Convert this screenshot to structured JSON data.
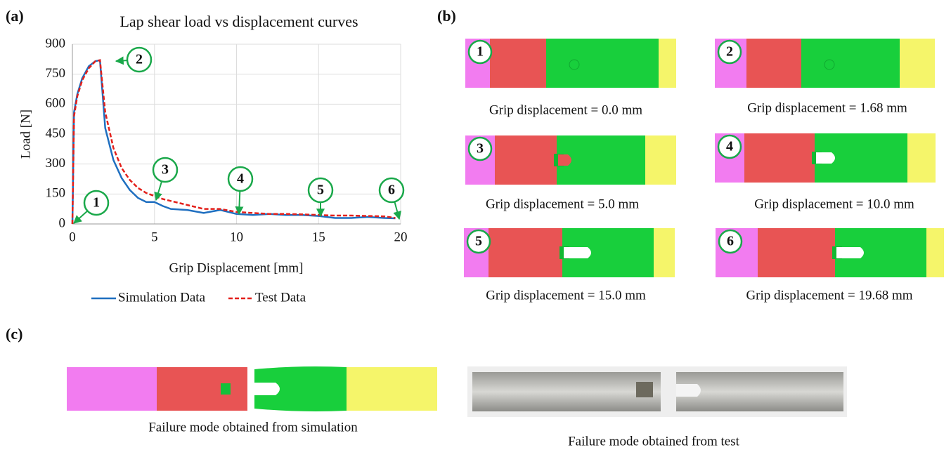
{
  "chart_data": {
    "type": "line",
    "panel_label": "(a)",
    "title": "Lap shear load vs displacement curves",
    "x_label": "Grip Displacement [mm]",
    "y_label": "Load [N]",
    "x": [
      0,
      0.1,
      0.3,
      0.6,
      1.0,
      1.4,
      1.68,
      2.0,
      2.5,
      3,
      3.5,
      4,
      4.5,
      5,
      5.5,
      6,
      7,
      8,
      9,
      10,
      11,
      12,
      13,
      14,
      15,
      16,
      17,
      18,
      19,
      19.68
    ],
    "series": [
      {
        "name": "Simulation Data",
        "color": "#1f6fc0",
        "dash": false,
        "values": [
          0,
          560,
          650,
          730,
          790,
          815,
          820,
          480,
          320,
          230,
          170,
          130,
          110,
          110,
          90,
          75,
          70,
          55,
          70,
          50,
          45,
          50,
          45,
          45,
          40,
          30,
          30,
          35,
          30,
          28
        ]
      },
      {
        "name": "Test Data",
        "color": "#e3201b",
        "dash": true,
        "values": [
          0,
          540,
          640,
          720,
          780,
          815,
          820,
          560,
          380,
          280,
          220,
          180,
          155,
          140,
          125,
          115,
          95,
          75,
          75,
          60,
          55,
          50,
          50,
          48,
          45,
          42,
          42,
          40,
          38,
          30
        ]
      }
    ],
    "xlim": [
      0,
      20
    ],
    "ylim": [
      0,
      900
    ],
    "xticks": [
      0,
      5,
      10,
      15,
      20
    ],
    "yticks": [
      0,
      150,
      300,
      450,
      600,
      750,
      900
    ],
    "grid": true,
    "legend": "bottom",
    "annotations": [
      "1",
      "2",
      "3",
      "4",
      "5",
      "6"
    ]
  },
  "panel_b": {
    "label": "(b)",
    "items": [
      {
        "number": "1",
        "caption": "Grip displacement = 0.0 mm"
      },
      {
        "number": "2",
        "caption": "Grip displacement = 1.68 mm"
      },
      {
        "number": "3",
        "caption": "Grip displacement = 5.0 mm"
      },
      {
        "number": "4",
        "caption": "Grip displacement = 10.0 mm"
      },
      {
        "number": "5",
        "caption": "Grip displacement = 15.0 mm"
      },
      {
        "number": "6",
        "caption": "Grip displacement = 19.68 mm"
      }
    ]
  },
  "panel_c": {
    "label": "(c)",
    "simulation_caption": "Failure mode obtained from simulation",
    "test_caption": "Failure mode obtained from test"
  }
}
